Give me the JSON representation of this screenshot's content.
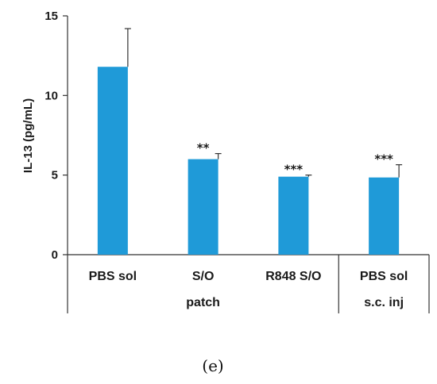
{
  "chart_data": {
    "type": "bar",
    "categories": [
      "PBS sol",
      "S/O",
      "R848 S/O",
      "PBS sol"
    ],
    "groups": [
      {
        "label": "patch",
        "categories": [
          0,
          1,
          2
        ]
      },
      {
        "label": "s.c. inj",
        "categories": [
          3
        ]
      }
    ],
    "values": [
      11.8,
      6.0,
      4.9,
      4.85
    ],
    "errors": [
      2.4,
      0.35,
      0.1,
      0.8
    ],
    "significance": [
      "",
      "**",
      "***",
      "***"
    ],
    "ylabel": "IL-13 (pg/mL)",
    "xlabel": "",
    "ylim": [
      0,
      15
    ],
    "yticks": [
      0,
      5,
      10,
      15
    ],
    "bar_color": "#1f9ad8",
    "grid": false,
    "legend": "none"
  },
  "caption": "(e)"
}
